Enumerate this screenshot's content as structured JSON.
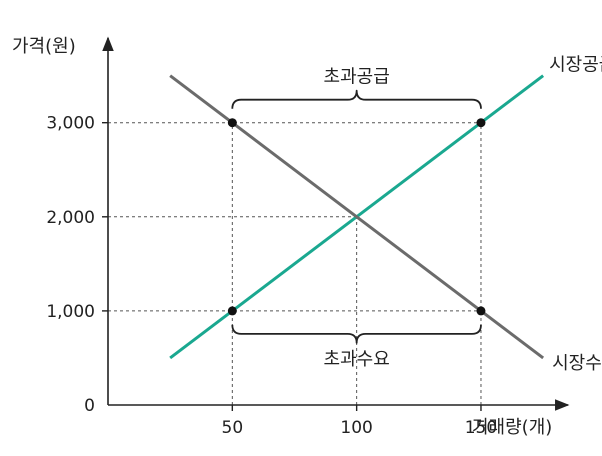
{
  "chart_data": {
    "type": "line",
    "title": "",
    "xlabel": "거래량(개)",
    "ylabel": "가격(원)",
    "origin_label": "0",
    "xlim": [
      0,
      185
    ],
    "ylim": [
      0,
      3900
    ],
    "x_ticks": [
      {
        "value": 50,
        "label": "50"
      },
      {
        "value": 100,
        "label": "100"
      },
      {
        "value": 150,
        "label": "150"
      }
    ],
    "y_ticks": [
      {
        "value": 1000,
        "label": "1,000"
      },
      {
        "value": 2000,
        "label": "2,000"
      },
      {
        "value": 3000,
        "label": "3,000"
      }
    ],
    "series": [
      {
        "name": "시장공급곡선",
        "color": "#1aa890",
        "points": [
          [
            25,
            500
          ],
          [
            175,
            3500
          ]
        ]
      },
      {
        "name": "시장수요곡선",
        "color": "#6b6b6b",
        "points": [
          [
            25,
            3500
          ],
          [
            175,
            500
          ]
        ]
      }
    ],
    "key_points": [
      {
        "x": 50,
        "y": 3000
      },
      {
        "x": 150,
        "y": 3000
      },
      {
        "x": 50,
        "y": 1000
      },
      {
        "x": 150,
        "y": 1000
      }
    ],
    "equilibrium": {
      "x": 100,
      "y": 2000
    },
    "annotations": [
      {
        "text": "초과공급",
        "x_from": 50,
        "x_to": 150,
        "at_y": 3000,
        "position": "above"
      },
      {
        "text": "초과수요",
        "x_from": 50,
        "x_to": 150,
        "at_y": 1000,
        "position": "below"
      }
    ],
    "grid": false
  }
}
